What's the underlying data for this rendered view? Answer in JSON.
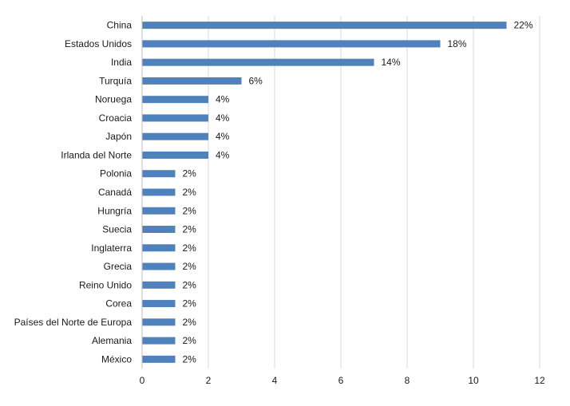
{
  "chart_data": {
    "type": "bar",
    "orientation": "horizontal",
    "categories": [
      "China",
      "Estados Unidos",
      "India",
      "Turquía",
      "Noruega",
      "Croacia",
      "Japón",
      "Irlanda del Norte",
      "Polonia",
      "Canadá",
      "Hungría",
      "Suecia",
      "Inglaterra",
      "Grecia",
      "Reino Unido",
      "Corea",
      "Países del Norte de Europa",
      "Alemania",
      "México"
    ],
    "values": [
      11,
      9,
      7,
      3,
      2,
      2,
      2,
      2,
      1,
      1,
      1,
      1,
      1,
      1,
      1,
      1,
      1,
      1,
      1
    ],
    "data_labels": [
      "22%",
      "18%",
      "14%",
      "6%",
      "4%",
      "4%",
      "4%",
      "4%",
      "2%",
      "2%",
      "2%",
      "2%",
      "2%",
      "2%",
      "2%",
      "2%",
      "2%",
      "2%",
      "2%"
    ],
    "xlim": [
      0,
      12
    ],
    "x_ticks": [
      "0",
      "2",
      "4",
      "6",
      "8",
      "10",
      "12"
    ],
    "grid": "vertical",
    "legend": "none",
    "bar_color": "#4f81bd",
    "title": "",
    "xlabel": "",
    "ylabel": ""
  }
}
